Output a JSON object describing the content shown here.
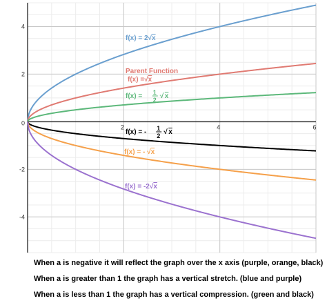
{
  "chart_data": {
    "type": "line",
    "title": "",
    "xlabel": "",
    "ylabel": "",
    "xlim": [
      0,
      6
    ],
    "ylim": [
      -5.5,
      5
    ],
    "grid": true,
    "x_ticks": [
      "2",
      "4",
      "6"
    ],
    "y_ticks": [
      "4",
      "2",
      "-2",
      "-4"
    ],
    "origin_label": "0",
    "series": [
      {
        "name": "f(x) = 2√x",
        "a": 2,
        "color": "#6a9fcf",
        "x": [
          0,
          1,
          2,
          3,
          4,
          5,
          6
        ],
        "y": [
          0,
          2,
          2.83,
          3.46,
          4,
          4.47,
          4.9
        ]
      },
      {
        "name": "f(x) = √x",
        "a": 1,
        "color": "#e07a72",
        "x": [
          0,
          1,
          2,
          3,
          4,
          5,
          6
        ],
        "y": [
          0,
          1,
          1.41,
          1.73,
          2,
          2.24,
          2.45
        ]
      },
      {
        "name": "f(x) = 1/2 √x",
        "a": 0.5,
        "color": "#5cb87a",
        "x": [
          0,
          1,
          2,
          3,
          4,
          5,
          6
        ],
        "y": [
          0,
          0.5,
          0.71,
          0.87,
          1,
          1.12,
          1.22
        ]
      },
      {
        "name": "f(x) = -1/2 √x",
        "a": -0.5,
        "color": "#000000",
        "x": [
          0,
          1,
          2,
          3,
          4,
          5,
          6
        ],
        "y": [
          0,
          -0.5,
          -0.71,
          -0.87,
          -1,
          -1.12,
          -1.22
        ]
      },
      {
        "name": "f(x) = -√x",
        "a": -1,
        "color": "#f5a04a",
        "x": [
          0,
          1,
          2,
          3,
          4,
          5,
          6
        ],
        "y": [
          0,
          -1,
          -1.41,
          -1.73,
          -2,
          -2.24,
          -2.45
        ]
      },
      {
        "name": "f(x) = -2√x",
        "a": -2,
        "color": "#9b72cf",
        "x": [
          0,
          1,
          2,
          3,
          4,
          5,
          6
        ],
        "y": [
          0,
          -2,
          -2.83,
          -3.46,
          -4,
          -4.47,
          -4.9
        ]
      }
    ],
    "annotations": [
      {
        "text": "Parent Function",
        "color": "#e07a72"
      }
    ]
  },
  "captions": [
    "When a is negative it will reflect the graph over the x axis (purple, orange, black)",
    "When a is greater than 1 the graph has a vertical stretch.  (blue and purple)",
    "When a is less than 1 the graph has a vertical compression.  (green and black)"
  ]
}
